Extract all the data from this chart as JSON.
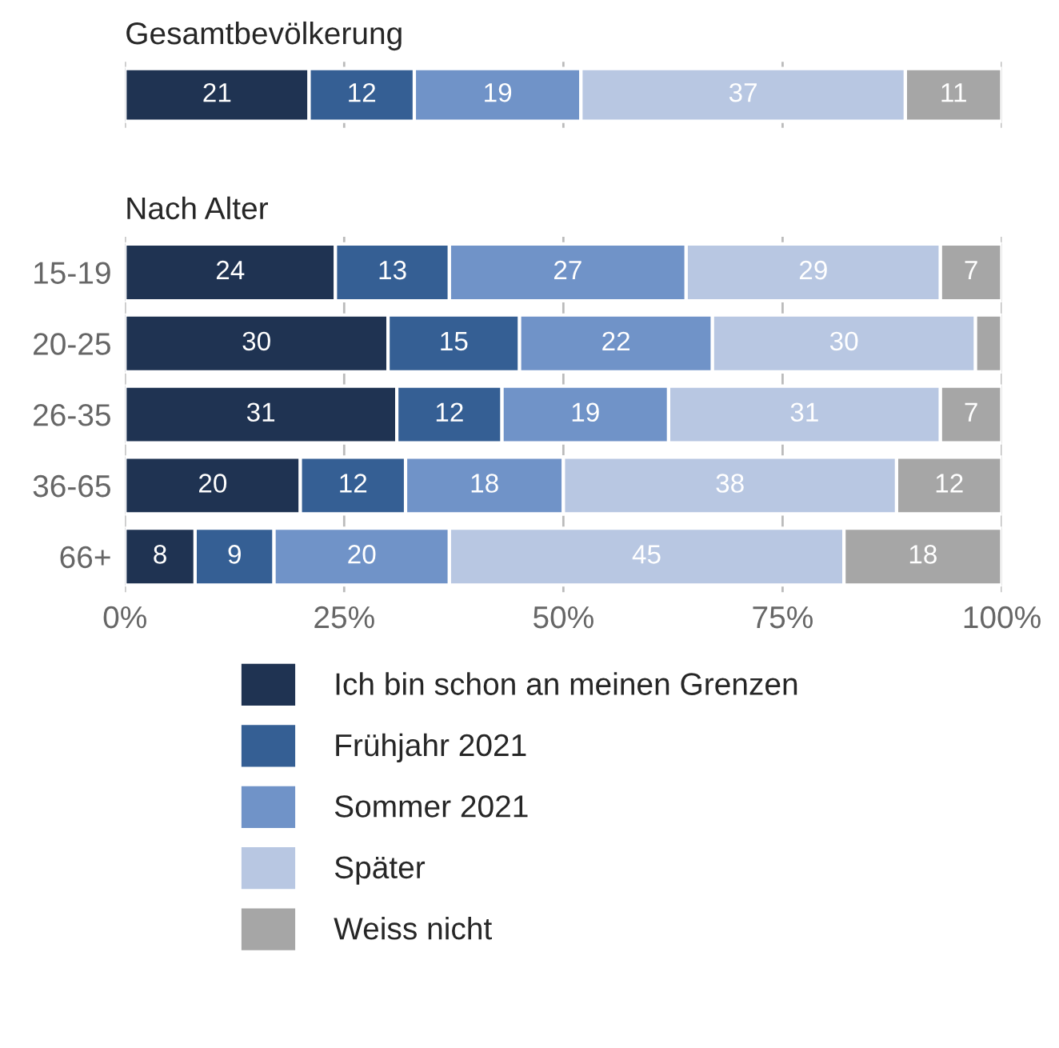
{
  "chart_data": [
    {
      "type": "bar",
      "orientation": "horizontal",
      "stacked": true,
      "title": "Gesamtbevölkerung",
      "categories": [
        null
      ],
      "xlim": [
        0,
        100
      ],
      "xticks": [
        0,
        25,
        50,
        75,
        100
      ],
      "tick_labels": false,
      "grid": "x",
      "data_labels": true,
      "legend": false,
      "series": [
        {
          "color": "#1f3352",
          "values": [
            21
          ]
        },
        {
          "color": "#355f94",
          "values": [
            12
          ]
        },
        {
          "color": "#7093c8",
          "values": [
            19
          ]
        },
        {
          "color": "#b8c7e2",
          "values": [
            37
          ]
        },
        {
          "color": "#a6a6a6",
          "values": [
            11
          ]
        }
      ]
    },
    {
      "type": "bar",
      "orientation": "horizontal",
      "stacked": true,
      "title": "Nach Alter",
      "categories": [
        "15-19",
        "20-25",
        "26-35",
        "36-65",
        "66+"
      ],
      "xlim": [
        0,
        100
      ],
      "xticks": [
        {
          "value": 0,
          "label": "0%"
        },
        {
          "value": 25,
          "label": "25%"
        },
        {
          "value": 50,
          "label": "50%"
        },
        {
          "value": 75,
          "label": "75%"
        },
        {
          "value": 100,
          "label": "100%"
        }
      ],
      "grid": "x",
      "legend": "bottom",
      "series": [
        {
          "name": "Ich bin schon an meinen Grenzen",
          "color": "#1f3352",
          "values": [
            24,
            30,
            31,
            20,
            8
          ],
          "value_labels": [
            "24",
            "30",
            "31",
            "20",
            "8"
          ]
        },
        {
          "name": "Frühjahr 2021",
          "color": "#355f94",
          "values": [
            13,
            15,
            12,
            12,
            9
          ],
          "value_labels": [
            "13",
            "15",
            "12",
            "12",
            "9"
          ]
        },
        {
          "name": "Sommer 2021",
          "color": "#7093c8",
          "values": [
            27,
            22,
            19,
            18,
            20
          ],
          "value_labels": [
            "27",
            "22",
            "19",
            "18",
            "20"
          ]
        },
        {
          "name": "Später",
          "color": "#b8c7e2",
          "values": [
            29,
            30,
            31,
            38,
            45
          ],
          "value_labels": [
            "29",
            "30",
            "31",
            "38",
            "45"
          ]
        },
        {
          "name": "Weiss nicht",
          "color": "#a6a6a6",
          "values": [
            7,
            3,
            7,
            12,
            18
          ],
          "value_labels": [
            "7",
            null,
            "7",
            "12",
            "18"
          ]
        }
      ]
    }
  ]
}
